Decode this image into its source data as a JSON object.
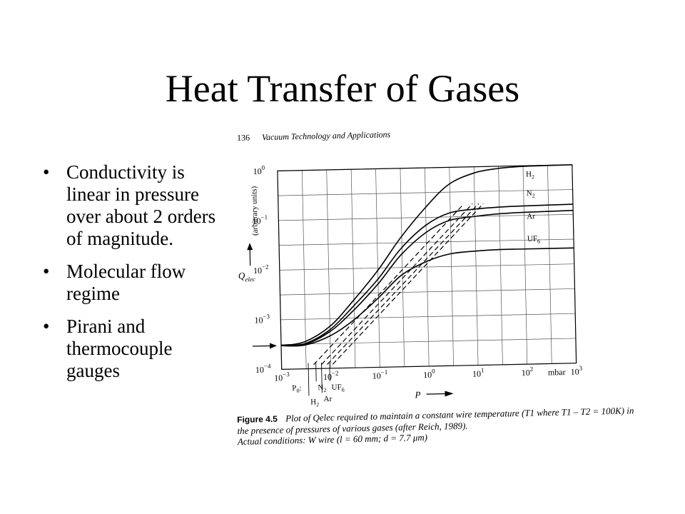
{
  "slide": {
    "title": "Heat Transfer of Gases",
    "bullets": [
      "Conductivity is linear in pressure over about 2 orders of magnitude.",
      "Molecular flow regime",
      "Pirani and thermocouple gauges"
    ]
  },
  "figure": {
    "page_number": "136",
    "book_title": "Vacuum Technology and Applications",
    "figure_label": "Figure 4.5",
    "caption": "Plot of Qelec required to maintain a constant wire temperature (T1 where T1 – T2 = 100K) in the presence of pressures of various gases (after Reich, 1989).",
    "caption_line2": "Actual conditions: W wire (l = 60 mm; d = 7.7 μm)"
  },
  "chart_data": {
    "type": "line",
    "xlabel": "P",
    "x_unit": "mbar",
    "ylabel": "Q",
    "ylabel_sub": "elec",
    "ylabel_unit": "(arbitrary units)",
    "xscale": "log",
    "yscale": "log",
    "xlim": [
      0.001,
      1000
    ],
    "ylim": [
      0.0001,
      1
    ],
    "x_ticks": [
      {
        "value": 0.001,
        "base": "10",
        "exp": "−3"
      },
      {
        "value": 0.01,
        "base": "10",
        "exp": "−2"
      },
      {
        "value": 0.1,
        "base": "10",
        "exp": "−1"
      },
      {
        "value": 1,
        "base": "10",
        "exp": "0"
      },
      {
        "value": 10,
        "base": "10",
        "exp": "1"
      },
      {
        "value": 100,
        "base": "10",
        "exp": "2"
      },
      {
        "value": 1000,
        "base": "10",
        "exp": "3"
      }
    ],
    "y_ticks": [
      {
        "value": 0.0001,
        "base": "10",
        "exp": "−4"
      },
      {
        "value": 0.001,
        "base": "10",
        "exp": "−3"
      },
      {
        "value": 0.01,
        "base": "10",
        "exp": "−2"
      },
      {
        "value": 0.1,
        "base": "10",
        "exp": "−1"
      },
      {
        "value": 1,
        "base": "10",
        "exp": "0"
      }
    ],
    "grid": true,
    "p0_label": "P0:",
    "series": [
      {
        "name": "H2",
        "label_main": "H",
        "label_sub": "2",
        "x": [
          0.001,
          0.003,
          0.01,
          0.03,
          0.1,
          0.3,
          1,
          3,
          10,
          30,
          100,
          1000
        ],
        "y": [
          0.0003,
          0.00035,
          0.0007,
          0.0022,
          0.009,
          0.04,
          0.16,
          0.45,
          0.75,
          0.9,
          0.97,
          1.0
        ]
      },
      {
        "name": "N2",
        "label_main": "N",
        "label_sub": "2",
        "x": [
          0.001,
          0.003,
          0.01,
          0.03,
          0.1,
          0.3,
          1,
          3,
          10,
          30,
          100,
          1000
        ],
        "y": [
          0.0003,
          0.00032,
          0.0006,
          0.0017,
          0.006,
          0.024,
          0.07,
          0.12,
          0.14,
          0.15,
          0.155,
          0.16
        ]
      },
      {
        "name": "Ar",
        "label_main": "Ar",
        "label_sub": "",
        "x": [
          0.001,
          0.003,
          0.01,
          0.03,
          0.1,
          0.3,
          1,
          3,
          10,
          30,
          100,
          1000
        ],
        "y": [
          0.0003,
          0.00031,
          0.00055,
          0.0014,
          0.0048,
          0.018,
          0.05,
          0.085,
          0.1,
          0.11,
          0.115,
          0.12
        ]
      },
      {
        "name": "UF6",
        "label_main": "UF",
        "label_sub": "6",
        "x": [
          0.001,
          0.003,
          0.01,
          0.03,
          0.1,
          0.3,
          1,
          3,
          10,
          30,
          100,
          1000
        ],
        "y": [
          0.0003,
          0.0003,
          0.00045,
          0.0009,
          0.0025,
          0.007,
          0.013,
          0.018,
          0.02,
          0.021,
          0.021,
          0.021
        ]
      }
    ],
    "linear_asymptotes": [
      {
        "name": "H2",
        "x": [
          0.0045,
          6
        ],
        "y": [
          0.00012,
          0.18
        ]
      },
      {
        "name": "N2",
        "x": [
          0.0065,
          9
        ],
        "y": [
          0.00012,
          0.18
        ]
      },
      {
        "name": "Ar",
        "x": [
          0.0085,
          12
        ],
        "y": [
          0.00012,
          0.18
        ]
      },
      {
        "name": "UF6",
        "x": [
          0.011,
          15
        ],
        "y": [
          0.00012,
          0.18
        ]
      }
    ],
    "p0_markers": [
      {
        "name": "N2",
        "x": 0.005
      },
      {
        "name": "UF6",
        "x": 0.0095
      },
      {
        "name": "H2",
        "x": 0.0035
      },
      {
        "name": "Ar",
        "x": 0.0065
      }
    ]
  }
}
